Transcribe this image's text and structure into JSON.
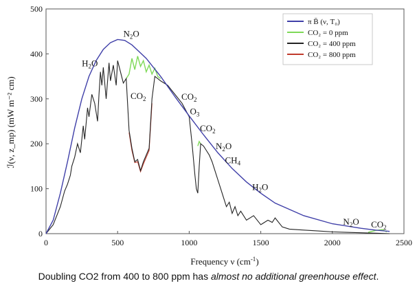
{
  "chart_data": {
    "type": "line",
    "title": "",
    "xlabel_main": "Frequency ν (cm",
    "xlabel_sup": "-1",
    "xlabel_end": ")",
    "ylabel": "ℐ(ν, z_mp) (mW m⁻² cm)",
    "xlim": [
      0,
      2500
    ],
    "ylim": [
      0,
      500
    ],
    "x_ticks": [
      0,
      500,
      1000,
      1500,
      2000,
      2500
    ],
    "y_ticks": [
      0,
      100,
      200,
      300,
      400,
      500
    ],
    "legend_position": "top-right",
    "legend": [
      {
        "label": "π B̄ (ν, T₀)",
        "color": "#3f3fa8"
      },
      {
        "label": "CO₂ = 0 ppm",
        "color": "#7ed957"
      },
      {
        "label": "CO₂ = 400 ppm",
        "color": "#222222"
      },
      {
        "label": "CO₂ = 800 ppm",
        "color": "#c0392b"
      }
    ],
    "series": [
      {
        "name": "π B̄ (ν, T₀)",
        "color": "#3f3fa8",
        "x": [
          0,
          50,
          100,
          150,
          200,
          250,
          300,
          350,
          400,
          450,
          500,
          550,
          600,
          650,
          700,
          750,
          800,
          900,
          1000,
          1100,
          1200,
          1300,
          1400,
          1500,
          1600,
          1800,
          2000,
          2200,
          2300,
          2400
        ],
        "y": [
          0,
          30,
          90,
          160,
          235,
          300,
          350,
          385,
          410,
          425,
          432,
          430,
          420,
          405,
          390,
          370,
          350,
          305,
          262,
          220,
          180,
          145,
          115,
          90,
          68,
          40,
          22,
          12,
          8,
          5
        ]
      },
      {
        "name": "CO₂ = 0 ppm",
        "color": "#7ed957",
        "x": [
          560,
          580,
          600,
          620,
          640,
          660,
          680,
          700,
          720,
          740,
          760,
          780,
          800,
          1060,
          1070,
          1080,
          2250,
          2300,
          2350,
          2380
        ],
        "y": [
          345,
          355,
          390,
          365,
          395,
          372,
          385,
          360,
          375,
          355,
          368,
          350,
          345,
          195,
          205,
          200,
          3,
          7,
          9,
          4
        ]
      },
      {
        "name": "CO₂ = 400 ppm",
        "color": "#222222",
        "x": [
          0,
          50,
          100,
          130,
          150,
          170,
          180,
          200,
          220,
          240,
          260,
          270,
          290,
          300,
          320,
          340,
          360,
          370,
          380,
          390,
          400,
          420,
          440,
          450,
          470,
          490,
          500,
          520,
          540,
          560,
          580,
          600,
          620,
          640,
          660,
          680,
          700,
          720,
          740,
          760,
          780,
          800,
          850,
          900,
          950,
          1000,
          1020,
          1040,
          1050,
          1060,
          1070,
          1080,
          1100,
          1120,
          1140,
          1160,
          1180,
          1200,
          1220,
          1240,
          1260,
          1280,
          1300,
          1320,
          1340,
          1360,
          1400,
          1450,
          1500,
          1550,
          1580,
          1600,
          1650,
          1700,
          1800,
          1900,
          2000,
          2100,
          2200,
          2300,
          2400
        ],
        "y": [
          0,
          20,
          60,
          95,
          110,
          130,
          150,
          170,
          200,
          180,
          240,
          210,
          280,
          260,
          310,
          290,
          250,
          310,
          360,
          330,
          370,
          300,
          380,
          340,
          375,
          330,
          385,
          360,
          335,
          345,
          230,
          190,
          160,
          165,
          140,
          160,
          175,
          190,
          300,
          350,
          345,
          340,
          330,
          310,
          290,
          260,
          200,
          130,
          100,
          90,
          150,
          200,
          195,
          185,
          175,
          160,
          140,
          120,
          100,
          80,
          60,
          70,
          45,
          60,
          40,
          50,
          30,
          40,
          20,
          30,
          25,
          35,
          15,
          10,
          8,
          6,
          4,
          3,
          2,
          1,
          0
        ]
      },
      {
        "name": "CO₂ = 800 ppm",
        "color": "#c0392b",
        "x": [
          580,
          600,
          620,
          640,
          660,
          680,
          700,
          720,
          740
        ],
        "y": [
          225,
          185,
          158,
          160,
          138,
          155,
          170,
          185,
          290
        ]
      }
    ],
    "annotations": [
      {
        "text": "N",
        "sub": "2",
        "tail": "O",
        "x": 540,
        "y": 438
      },
      {
        "text": "H",
        "sub": "2",
        "tail": "O",
        "x": 250,
        "y": 372
      },
      {
        "text": "CO",
        "sub": "2",
        "tail": "",
        "x": 590,
        "y": 300
      },
      {
        "text": "CO",
        "sub": "2",
        "tail": "",
        "x": 945,
        "y": 298
      },
      {
        "text": "O",
        "sub": "3",
        "tail": "",
        "x": 1005,
        "y": 265
      },
      {
        "text": "CO",
        "sub": "2",
        "tail": "",
        "x": 1075,
        "y": 228
      },
      {
        "text": "N",
        "sub": "2",
        "tail": "O",
        "x": 1185,
        "y": 188
      },
      {
        "text": "CH",
        "sub": "4",
        "tail": "",
        "x": 1250,
        "y": 157
      },
      {
        "text": "H",
        "sub": "2",
        "tail": "O",
        "x": 1440,
        "y": 97
      },
      {
        "text": "N",
        "sub": "2",
        "tail": "O",
        "x": 2075,
        "y": 20
      },
      {
        "text": "CO",
        "sub": "2",
        "tail": "",
        "x": 2270,
        "y": 14
      }
    ]
  },
  "caption": {
    "plain": "Doubling CO2 from 400 to 800 ppm has ",
    "italic": "almost no additional greenhouse effect",
    "end": "."
  }
}
